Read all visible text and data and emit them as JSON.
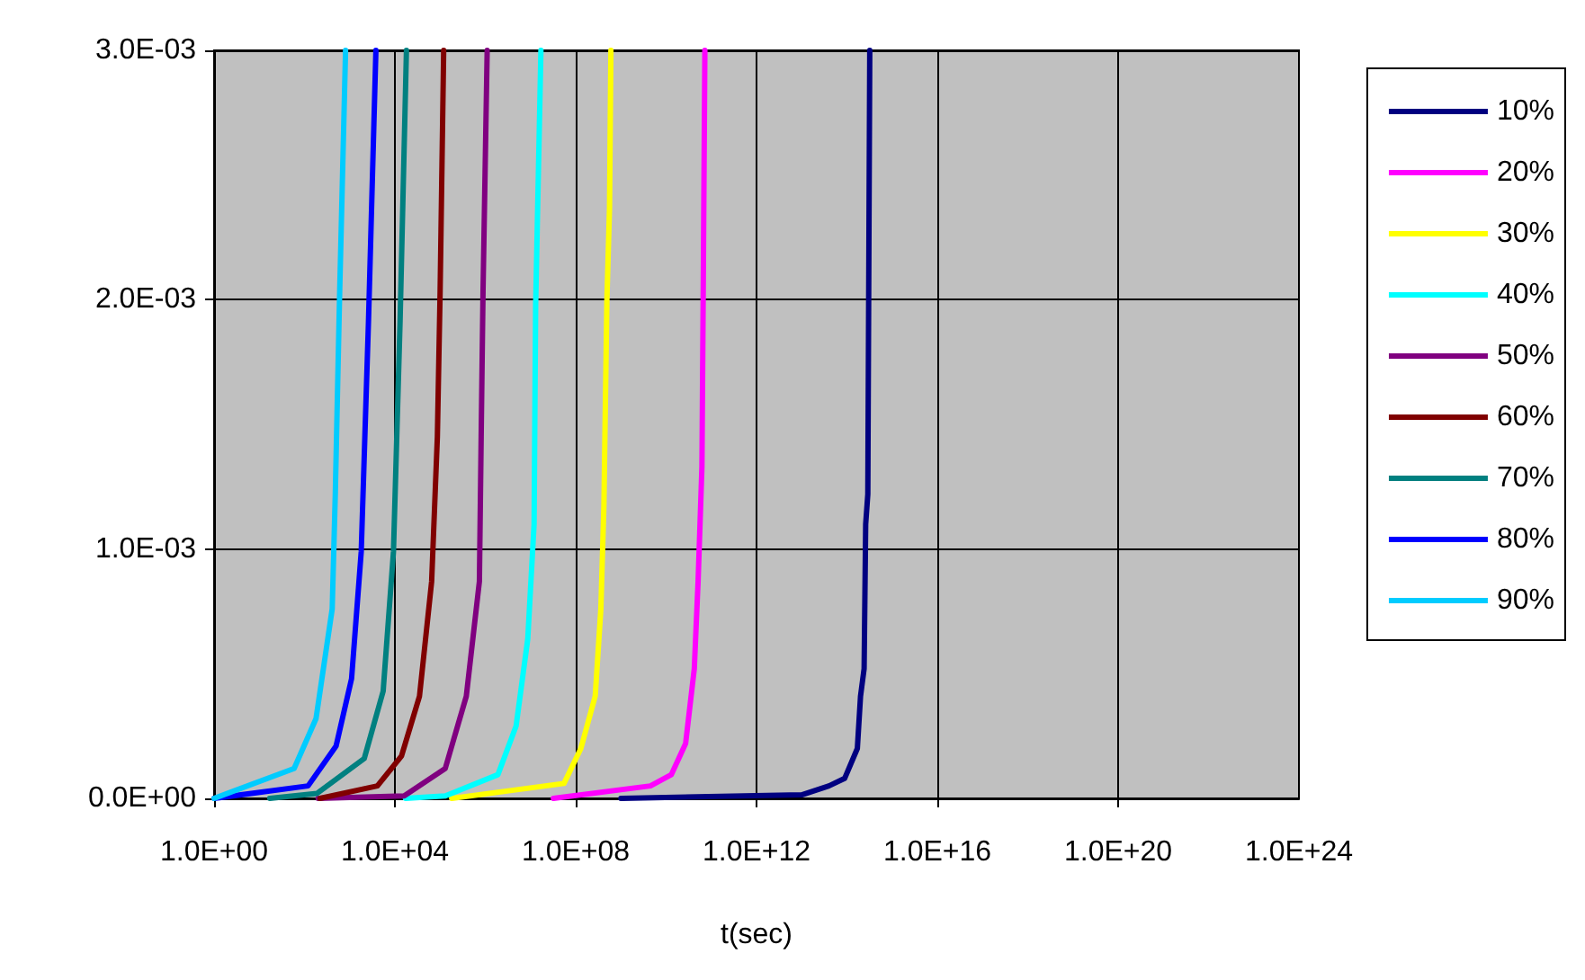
{
  "chart_data": {
    "type": "line",
    "xlabel": "t(sec)",
    "log": "x",
    "xlim": [
      1,
      1e+24
    ],
    "xticks": [
      {
        "value": 1,
        "label": "1.0E+00"
      },
      {
        "value": 10000.0,
        "label": "1.0E+04"
      },
      {
        "value": 100000000.0,
        "label": "1.0E+08"
      },
      {
        "value": 1000000000000.0,
        "label": "1.0E+12"
      },
      {
        "value": 1e+16,
        "label": "1.0E+16"
      },
      {
        "value": 1e+20,
        "label": "1.0E+20"
      },
      {
        "value": 1e+24,
        "label": "1.0E+24"
      }
    ],
    "ylim": [
      0,
      0.003
    ],
    "yticks": [
      {
        "value": 0,
        "label": "0.0E+00"
      },
      {
        "value": 0.001,
        "label": "1.0E-03"
      },
      {
        "value": 0.002,
        "label": "2.0E-03"
      },
      {
        "value": 0.003,
        "label": "3.0E-03"
      }
    ],
    "grid": true,
    "legend": "right",
    "marker": "none",
    "line_style": "solid",
    "series": [
      {
        "name": "10%",
        "color": "#000080",
        "x": [
          1000000000.0,
          10000000000000.0,
          40000000000000.0,
          89000000000000.0,
          170000000000000.0,
          200000000000000.0,
          240000000000000.0,
          260000000000000.0,
          290000000000000.0,
          320000000000000.0
        ],
        "values": [
          0,
          1.4e-05,
          5e-05,
          8e-05,
          0.0002,
          0.00041,
          0.00052,
          0.0011,
          0.00122,
          0.003
        ]
      },
      {
        "name": "20%",
        "color": "#ff00ff",
        "x": [
          32000000.0,
          4500000000.0,
          13000000000.0,
          27000000000.0,
          42000000000.0,
          51000000000.0,
          62000000000.0,
          66000000000.0,
          72000000000.0
        ],
        "values": [
          0,
          5e-05,
          9.5e-05,
          0.00022,
          0.00052,
          0.00087,
          0.00133,
          0.002,
          0.003
        ]
      },
      {
        "name": "30%",
        "color": "#ffff00",
        "x": [
          180000,
          55000000.0,
          130000000.0,
          270000000.0,
          360000000.0,
          420000000.0,
          490000000.0,
          560000000.0,
          600000000.0
        ],
        "values": [
          0,
          6e-05,
          0.0002,
          0.00041,
          0.00076,
          0.00117,
          0.002,
          0.00237,
          0.003
        ]
      },
      {
        "name": "40%",
        "color": "#00ffff",
        "x": [
          17000,
          130000,
          1900000,
          4800000,
          8700000,
          12000000,
          13000000,
          17000000
        ],
        "values": [
          0,
          1e-05,
          9.5e-05,
          0.00029,
          0.00064,
          0.0011,
          0.00198,
          0.003
        ]
      },
      {
        "name": "50%",
        "color": "#800080",
        "x": [
          200,
          16000,
          130000,
          380000,
          740000,
          810000,
          890000,
          1100000
        ],
        "values": [
          0,
          1e-05,
          0.00012,
          0.00041,
          0.00087,
          0.00145,
          0.00203,
          0.003
        ]
      },
      {
        "name": "60%",
        "color": "#800000",
        "x": [
          220,
          4100,
          14000,
          35000,
          65000,
          87000,
          100000,
          120000
        ],
        "values": [
          0,
          5e-05,
          0.00017,
          0.00041,
          0.00087,
          0.00145,
          0.00203,
          0.003
        ]
      },
      {
        "name": "70%",
        "color": "#008080",
        "x": [
          17,
          190,
          2100,
          5500,
          9300,
          13000,
          18000
        ],
        "values": [
          0,
          2e-05,
          0.00016,
          0.00043,
          0.00099,
          0.00191,
          0.003
        ]
      },
      {
        "name": "80%",
        "color": "#0000ff",
        "x": [
          1,
          120,
          500,
          1100,
          1800,
          2600,
          3800
        ],
        "values": [
          0,
          5e-05,
          0.00021,
          0.00048,
          0.00099,
          0.00191,
          0.003
        ]
      },
      {
        "name": "90%",
        "color": "#00ccff",
        "x": [
          1,
          59,
          180,
          410,
          480,
          600,
          810
        ],
        "values": [
          0,
          0.00012,
          0.00032,
          0.00076,
          0.00122,
          0.00203,
          0.003
        ]
      }
    ]
  }
}
